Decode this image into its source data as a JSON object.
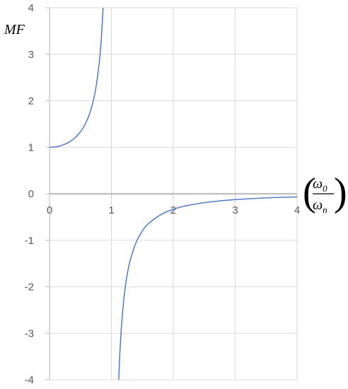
{
  "chart_data": {
    "type": "line",
    "title": "",
    "ylabel": "MF",
    "xlabel": {
      "numerator": "ω",
      "numerator_sub": "0",
      "denominator": "ω",
      "denominator_sub": "n"
    },
    "xlim": [
      0,
      4
    ],
    "ylim": [
      -4,
      4
    ],
    "x_ticks": [
      "0",
      "1",
      "2",
      "3",
      "4"
    ],
    "y_ticks": [
      "4",
      "3",
      "2",
      "1",
      "0",
      "-1",
      "-2",
      "-3",
      "-4"
    ],
    "grid": true,
    "legend": "none",
    "series": [
      {
        "color": "#4472c4",
        "segments": [
          {
            "x": [
              0,
              0.1,
              0.2,
              0.3,
              0.4,
              0.5,
              0.55,
              0.6,
              0.65,
              0.7,
              0.75,
              0.8,
              0.83,
              0.866
            ],
            "y": [
              1,
              1.0101,
              1.0417,
              1.0989,
              1.1905,
              1.3333,
              1.4337,
              1.5625,
              1.7316,
              1.9608,
              2.2857,
              2.7778,
              3.2,
              4.0
            ]
          },
          {
            "x": [
              1.118,
              1.15,
              1.2,
              1.25,
              1.3,
              1.4,
              1.5,
              1.6,
              1.8,
              2.0,
              2.2,
              2.5,
              2.8,
              3.0,
              3.3,
              3.6,
              4.0
            ],
            "y": [
              -4.0,
              -3.1008,
              -2.2727,
              -1.7778,
              -1.4493,
              -1.0417,
              -0.8,
              -0.641,
              -0.4464,
              -0.3333,
              -0.2604,
              -0.1905,
              -0.1462,
              -0.125,
              -0.1011,
              -0.0833,
              -0.0667
            ]
          }
        ]
      }
    ]
  }
}
